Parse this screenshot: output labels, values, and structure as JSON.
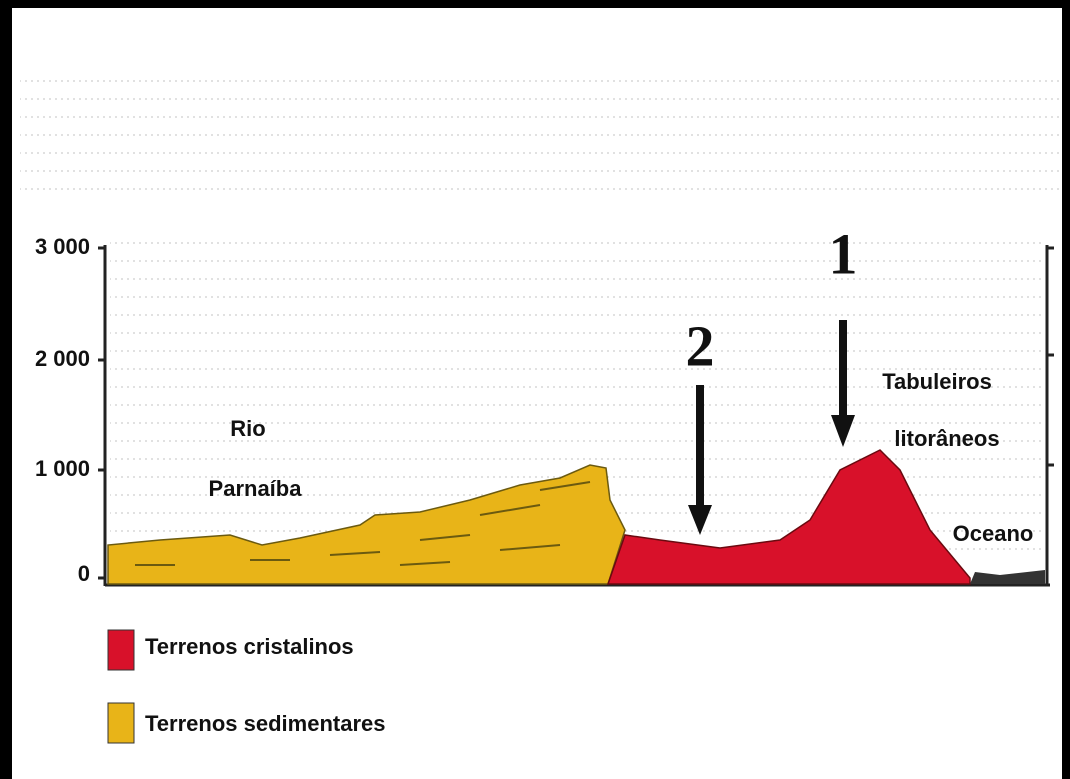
{
  "axis": {
    "ticks": [
      "3 000",
      "2 000",
      "1 000",
      "0"
    ]
  },
  "labels": {
    "river": [
      "Rio",
      "Parnaíba"
    ],
    "marker_2": "2",
    "marker_1": "1",
    "tabuleiros": [
      "Tabuleiros",
      "litorâneos"
    ],
    "ocean": "Oceano"
  },
  "legend": [
    {
      "label": "Terrenos cristalinos",
      "color": "#d8112a"
    },
    {
      "label": "Terrenos sedimentares",
      "color": "#e8b418"
    }
  ]
}
